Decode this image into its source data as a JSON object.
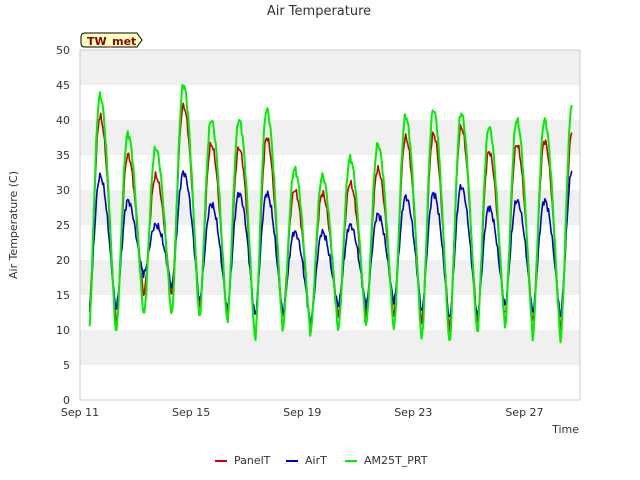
{
  "chart_data": {
    "type": "line",
    "title": "Air Temperature",
    "xlabel": "Time",
    "ylabel": "Air Temperature (C)",
    "ylim": [
      0,
      50
    ],
    "yticks": [
      0,
      5,
      10,
      15,
      20,
      25,
      30,
      35,
      40,
      45,
      50
    ],
    "xlim": [
      0,
      18
    ],
    "xtick_labels": [
      "Sep 11",
      "Sep 15",
      "Sep 19",
      "Sep 23",
      "Sep 27"
    ],
    "xtick_values": [
      0,
      4,
      8,
      12,
      16
    ],
    "x_unit": "days after Sep 11",
    "badge": "TW_met",
    "grid": "horizontal bands",
    "legend_position": "bottom-center",
    "daily": {
      "days": [
        0.5,
        1.5,
        2.5,
        3.5,
        4.5,
        5.5,
        6.5,
        7.5,
        8.5,
        9.5,
        10.5,
        11.5,
        12.5,
        13.5,
        14.5,
        15.5,
        16.5,
        17.5
      ],
      "series": [
        {
          "name": "PanelT",
          "color": "#cc0000",
          "max": [
            40.5,
            35,
            32,
            42,
            36.5,
            36,
            37.5,
            30,
            29.5,
            31,
            33,
            37.5,
            38,
            39,
            35.5,
            36.5,
            37,
            38.5
          ],
          "min": [
            10.5,
            11,
            15,
            15,
            13,
            12,
            9,
            12,
            10.5,
            12,
            12,
            12,
            11,
            10,
            11,
            12,
            11,
            10
          ]
        },
        {
          "name": "AirT",
          "color": "#0000cc",
          "max": [
            32,
            28.5,
            25,
            32.5,
            28,
            29.5,
            29.5,
            24,
            24,
            25,
            26.5,
            29,
            29.5,
            30.5,
            27.5,
            28.5,
            28.5,
            33
          ],
          "min": [
            11.5,
            13,
            18,
            16,
            14,
            13,
            12,
            12.5,
            11,
            13.5,
            13.5,
            14,
            12.5,
            11.5,
            12,
            13.5,
            12.5,
            12
          ]
        },
        {
          "name": "AM25T_PRT",
          "color": "#00ee00",
          "max": [
            43.5,
            38,
            36,
            45,
            40,
            40,
            41.5,
            33,
            32,
            34.5,
            36.5,
            40.5,
            41.5,
            41,
            39,
            40,
            40,
            42.5
          ],
          "min": [
            8,
            9.5,
            12,
            12,
            11.5,
            11,
            8.5,
            10,
            9.5,
            10,
            10.5,
            10,
            8.5,
            8,
            9.5,
            10.5,
            9,
            8.5
          ]
        }
      ]
    }
  },
  "legend": {
    "items": [
      {
        "label": "PanelT",
        "color": "#cc0000"
      },
      {
        "label": "AirT",
        "color": "#0000cc"
      },
      {
        "label": "AM25T_PRT",
        "color": "#00ee00"
      }
    ]
  },
  "colors": {
    "band": "#f0f0f0",
    "badge_fill": "#ffffc0",
    "badge_text": "#8b0000",
    "axis": "#cccccc"
  }
}
